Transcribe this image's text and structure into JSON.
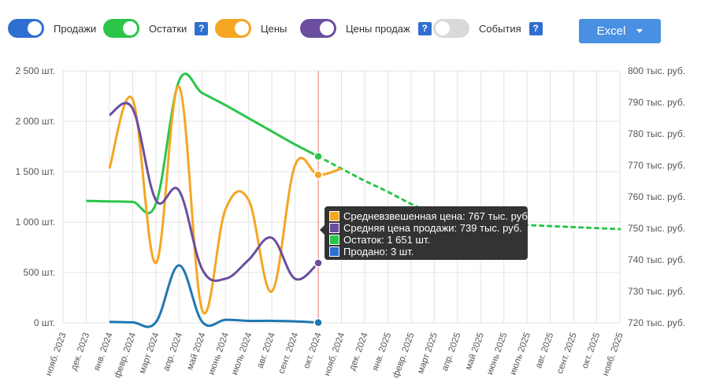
{
  "toggles": [
    {
      "label": "Продажи",
      "color": "#2f6fd1",
      "on": true,
      "help": false
    },
    {
      "label": "Остатки",
      "color": "#2bc54a",
      "on": true,
      "help": true
    },
    {
      "label": "Цены",
      "color": "#f5a623",
      "on": true,
      "help": false
    },
    {
      "label": "Цены продаж",
      "color": "#6b4ea0",
      "on": true,
      "help": true
    },
    {
      "label": "События",
      "color": "#d9d9d9",
      "on": false,
      "help": true
    }
  ],
  "help_glyph": "?",
  "export_button": {
    "label": "Excel"
  },
  "tooltip": {
    "rows": [
      {
        "color": "#f5a623",
        "text": "Средневзвешенная цена: 767 тыс. руб."
      },
      {
        "color": "#6b4ea0",
        "text": "Средняя цена продажи: 739 тыс. руб."
      },
      {
        "color": "#2bc54a",
        "text": "Остаток: 1 651 шт."
      },
      {
        "color": "#2f6fd1",
        "text": "Продано: 3 шт."
      }
    ]
  },
  "chart_data": {
    "type": "line",
    "title": "",
    "x": [
      "нояб. 2023",
      "дек. 2023",
      "янв. 2024",
      "февр. 2024",
      "март 2024",
      "апр. 2024",
      "май 2024",
      "июнь 2024",
      "июль 2024",
      "авг. 2024",
      "сент. 2024",
      "окт. 2024",
      "нояб. 2024",
      "дек. 2024",
      "янв. 2025",
      "февр. 2025",
      "март 2025",
      "апр. 2025",
      "май 2025",
      "июнь 2025",
      "июль 2025",
      "авг. 2025",
      "сент. 2025",
      "окт. 2025",
      "нояб. 2025"
    ],
    "y_left": {
      "ticks": [
        "0 шт.",
        "500 шт.",
        "1 000 шт.",
        "1 500 шт.",
        "2 000 шт.",
        "2 500 шт."
      ],
      "range": [
        0,
        2500
      ]
    },
    "y_right": {
      "ticks": [
        "720 тыс. руб.",
        "730 тыс. руб.",
        "740 тыс. руб.",
        "750 тыс. руб.",
        "760 тыс. руб.",
        "770 тыс. руб.",
        "780 тыс. руб.",
        "790 тыс. руб.",
        "800 тыс. руб."
      ],
      "range": [
        720,
        800
      ]
    },
    "grid": true,
    "crosshair_x": "окт. 2024",
    "series": [
      {
        "key": "stock",
        "axis": "left",
        "color": "#2bc54a",
        "values": [
          null,
          1210,
          1205,
          1200,
          1180,
          2400,
          2280,
          2160,
          2030,
          1900,
          1770,
          1651,
          null,
          null,
          null,
          null,
          null,
          null,
          null,
          null,
          null,
          null,
          null,
          null,
          null
        ],
        "forecast": [
          null,
          null,
          null,
          null,
          null,
          null,
          null,
          null,
          null,
          null,
          null,
          1651,
          1530,
          1410,
          1300,
          1180,
          1080,
          1030,
          1000,
          980,
          970,
          960,
          950,
          940,
          930
        ]
      },
      {
        "key": "price",
        "axis": "right",
        "color": "#f5a623",
        "values": [
          null,
          null,
          769,
          791,
          739,
          795,
          724,
          756,
          759,
          730,
          770,
          767,
          769,
          null,
          null,
          null,
          null,
          null,
          null,
          null,
          null,
          null,
          null,
          null,
          null
        ]
      },
      {
        "key": "sale_price",
        "axis": "right",
        "color": "#6b4ea0",
        "values": [
          null,
          null,
          786,
          788,
          759,
          762,
          737,
          734,
          740,
          747,
          734,
          739,
          null,
          null,
          null,
          null,
          null,
          null,
          null,
          null,
          null,
          null,
          null,
          null,
          null
        ]
      },
      {
        "key": "sold",
        "axis": "left",
        "color": "#1f77b4",
        "values": [
          null,
          null,
          10,
          5,
          5,
          570,
          10,
          30,
          20,
          20,
          15,
          3,
          null,
          null,
          null,
          null,
          null,
          null,
          null,
          null,
          null,
          null,
          null,
          null,
          null
        ]
      }
    ]
  }
}
